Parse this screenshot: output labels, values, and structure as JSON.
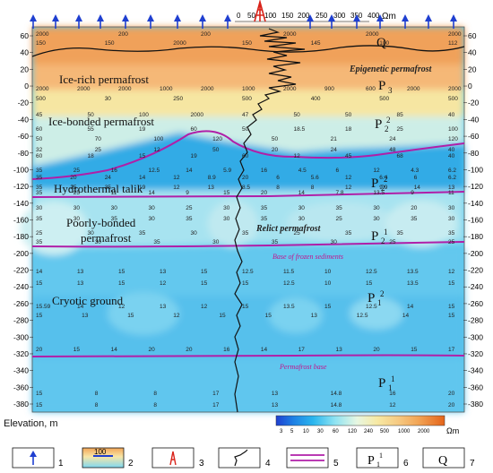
{
  "unit_top": "Ωm",
  "resistivity_scale_ticks": [
    "0",
    "50",
    "100",
    "150",
    "200",
    "250",
    "300",
    "350",
    "400"
  ],
  "elevation_ticks": [
    "60",
    "40",
    "20",
    "0",
    "-20",
    "-40",
    "-60",
    "-80",
    "-100",
    "-120",
    "-140",
    "-160",
    "-180",
    "-200",
    "-220",
    "-240",
    "-260",
    "-280",
    "-300",
    "-320",
    "-340",
    "-360",
    "-380"
  ],
  "axis_label": "Elevation, m",
  "unit_colorbar": "Ωm",
  "colorbar_ticks": [
    "3",
    "5",
    "10",
    "30",
    "60",
    "120",
    "240",
    "500",
    "1000",
    "2000"
  ],
  "colorbar_colors": [
    "#1f3fd0",
    "#1ea0e8",
    "#5ed3f2",
    "#bfeef2",
    "#f3f4c0",
    "#f8e49a",
    "#f7c27a",
    "#f2a050",
    "#ec7e2a",
    "#e4641a"
  ],
  "layer_labels": {
    "ice_rich": "Ice-rich permafrost",
    "ice_bonded": "Ice-bonded permafrost",
    "talik": "Hydrothermal talik",
    "poorly_bonded_1": "Poorly-bonded",
    "poorly_bonded_2": "permafrost",
    "cryotic": "Cryotic ground"
  },
  "italic_labels": {
    "epigenetic": "Epigenetic permafrost",
    "relict": "Relict permafrost",
    "base_frozen": "Base of frozen sediments",
    "permafrost_base": "Permafrost base"
  },
  "stratigraphy": {
    "Q": "Q",
    "P3": "P",
    "P3_sub": "3",
    "P2_2_a": "P",
    "P2_2_a_sub": "2",
    "P2_2_a_sup": "2",
    "P2_2_b": "P",
    "P2_2_b_sub": "2",
    "P2_2_b_sup": "2",
    "P2_1": "P",
    "P2_1_sub": "2",
    "P2_1_sup": "1",
    "P1_2": "P",
    "P1_2_sub": "1",
    "P1_2_sup": "2",
    "P1_1": "P",
    "P1_1_sub": "1",
    "P1_1_sup": "1"
  },
  "resistivity_values": [
    {
      "row": "150  150  2000  150  145  100  112",
      "y": 50
    },
    {
      "row": "2000  200  200  2000  2000  2000",
      "y": 40
    },
    {
      "row": "2000  2000  2000  1000  2000  1000  2000  900  600  2000  2000",
      "y": 101
    },
    {
      "row": "500  30  250  500  400  500  500",
      "y": 112
    },
    {
      "row": "45  50  100  2000  47  50  50  85  40",
      "y": 130
    },
    {
      "row": "60  55  19  60  50  18.5  18  25  100",
      "y": 146
    },
    {
      "row": "50  70  100  120  50  21  24  120",
      "y": 157
    },
    {
      "row": "32  25  12  50  20  24  48  40",
      "y": 169
    },
    {
      "row": "60  18  15  19  60  12  45  68  40",
      "y": 176
    },
    {
      "row": "35  25  16  12.5  14  5.9  16  4.5  6  12  4.3  6.2",
      "y": 192
    },
    {
      "row": "35  20  24  14  12  8.9  20  6  5.6  12  6.4  6  6.2",
      "y": 200
    },
    {
      "row": "35  25  35  19  12  13  8.5  8  8  12  9.9  14  13",
      "y": 211
    },
    {
      "row": "35  25  11  14  9  15  20  14  7.8  13.5  9  11",
      "y": 217
    },
    {
      "row": "30  30  30  30  25  30  35  30  35  30  20  30",
      "y": 234
    },
    {
      "row": "35  30  35  30  35  30  35  30  25  30  35  30",
      "y": 246
    },
    {
      "row": "25  30  35  30  35  25  35  35  35",
      "y": 262
    },
    {
      "row": "35  30  35  30  35  30  25  25",
      "y": 272
    },
    {
      "row": "14  13  15  13  15  12.5  11.5  10  12.5  13.5  12",
      "y": 305
    },
    {
      "row": "15  13  15  12  15  15  12.5  10  15  13.5  15",
      "y": 318
    },
    {
      "row": "15.59  14  12  13  12  15  13.5  15  12.5  14  15",
      "y": 344
    },
    {
      "row": "15  13  15  12  15  15  13  12.5  14  15",
      "y": 354
    },
    {
      "row": "20  15  14  20  20  16  14  17  13  20  15  17",
      "y": 392
    },
    {
      "row": "15  8  8  17  13  14.8  16  20",
      "y": 441
    },
    {
      "row": "15  8  8  17  13  14.8  12  20",
      "y": 454
    }
  ],
  "legend": {
    "item1": "1",
    "item2_value": "100",
    "item2": "2",
    "item3": "3",
    "item4": "4",
    "item5": "5",
    "item6_text": "P",
    "item6_sub": "1",
    "item6_sup": "1",
    "item6": "6",
    "item7_text": "Q",
    "item7": "7"
  }
}
